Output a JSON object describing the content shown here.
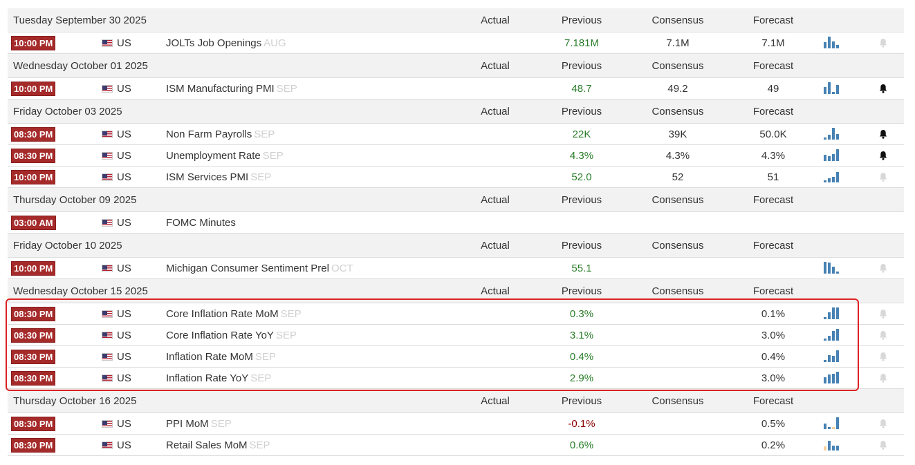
{
  "columns": {
    "actual": "Actual",
    "previous": "Previous",
    "consensus": "Consensus",
    "forecast": "Forecast"
  },
  "colors": {
    "time_badge": "#a52a2a",
    "positive": "#2a7d2a",
    "negative": "#8b0000",
    "bar": "#4682b4",
    "highlight": "#dd2222"
  },
  "groups": [
    {
      "date": "Tuesday September 30 2025",
      "events": [
        {
          "time": "10:00 PM",
          "country": "US",
          "flag_icon": "us-flag-icon",
          "name": "JOLTs Job Openings",
          "ref": "AUG",
          "actual": "",
          "previous": "7.181M",
          "previous_color": "green",
          "consensus": "7.1M",
          "forecast": "7.1M",
          "bars": [
            0.55,
            1,
            0.6,
            0.3
          ],
          "alert": false
        }
      ]
    },
    {
      "date": "Wednesday October 01 2025",
      "events": [
        {
          "time": "10:00 PM",
          "country": "US",
          "flag_icon": "us-flag-icon",
          "name": "ISM Manufacturing PMI",
          "ref": "SEP",
          "actual": "",
          "previous": "48.7",
          "previous_color": "green",
          "consensus": "49.2",
          "forecast": "49",
          "bars": [
            0.6,
            1,
            0.2,
            0.75
          ],
          "alert": true
        }
      ]
    },
    {
      "date": "Friday October 03 2025",
      "events": [
        {
          "time": "08:30 PM",
          "country": "US",
          "flag_icon": "us-flag-icon",
          "name": "Non Farm Payrolls",
          "ref": "SEP",
          "actual": "",
          "previous": "22K",
          "previous_color": "green",
          "consensus": "39K",
          "forecast": "50.0K",
          "bars": [
            0.2,
            0.4,
            1,
            0.45
          ],
          "alert": true
        },
        {
          "time": "08:30 PM",
          "country": "US",
          "flag_icon": "us-flag-icon",
          "name": "Unemployment Rate",
          "ref": "SEP",
          "actual": "",
          "previous": "4.3%",
          "previous_color": "green",
          "consensus": "4.3%",
          "forecast": "4.3%",
          "bars": [
            0.55,
            0.4,
            0.6,
            1
          ],
          "alert": true
        },
        {
          "time": "10:00 PM",
          "country": "US",
          "flag_icon": "us-flag-icon",
          "name": "ISM Services PMI",
          "ref": "SEP",
          "actual": "",
          "previous": "52.0",
          "previous_color": "green",
          "consensus": "52",
          "forecast": "51",
          "bars": [
            0.2,
            0.35,
            0.45,
            0.9
          ],
          "alert": false
        }
      ]
    },
    {
      "date": "Thursday October 09 2025",
      "events": [
        {
          "time": "03:00 AM",
          "country": "US",
          "flag_icon": "us-flag-icon",
          "name": "FOMC Minutes",
          "ref": "",
          "actual": "",
          "previous": "",
          "previous_color": "green",
          "consensus": "",
          "forecast": "",
          "bars": [],
          "alert": null
        }
      ]
    },
    {
      "date": "Friday October 10 2025",
      "events": [
        {
          "time": "10:00 PM",
          "country": "US",
          "flag_icon": "us-flag-icon",
          "name": "Michigan Consumer Sentiment Prel",
          "ref": "OCT",
          "actual": "",
          "previous": "55.1",
          "previous_color": "green",
          "consensus": "",
          "forecast": "",
          "bars": [
            1,
            0.95,
            0.6,
            0.15
          ],
          "alert": false
        }
      ]
    },
    {
      "date": "Wednesday October 15 2025",
      "events": [
        {
          "time": "08:30 PM",
          "country": "US",
          "flag_icon": "us-flag-icon",
          "name": "Core Inflation Rate MoM",
          "ref": "SEP",
          "actual": "",
          "previous": "0.3%",
          "previous_color": "green",
          "consensus": "",
          "forecast": "0.1%",
          "bars": [
            0.2,
            0.6,
            1,
            1
          ],
          "alert": false
        },
        {
          "time": "08:30 PM",
          "country": "US",
          "flag_icon": "us-flag-icon",
          "name": "Core Inflation Rate YoY",
          "ref": "SEP",
          "actual": "",
          "previous": "3.1%",
          "previous_color": "green",
          "consensus": "",
          "forecast": "3.0%",
          "bars": [
            0.15,
            0.4,
            0.85,
            1
          ],
          "alert": false
        },
        {
          "time": "08:30 PM",
          "country": "US",
          "flag_icon": "us-flag-icon",
          "name": "Inflation Rate MoM",
          "ref": "SEP",
          "actual": "",
          "previous": "0.4%",
          "previous_color": "green",
          "consensus": "",
          "forecast": "0.4%",
          "bars": [
            0.15,
            0.6,
            0.55,
            1
          ],
          "alert": false
        },
        {
          "time": "08:30 PM",
          "country": "US",
          "flag_icon": "us-flag-icon",
          "name": "Inflation Rate YoY",
          "ref": "SEP",
          "actual": "",
          "previous": "2.9%",
          "previous_color": "green",
          "consensus": "",
          "forecast": "3.0%",
          "bars": [
            0.55,
            0.75,
            0.8,
            1
          ],
          "alert": false
        }
      ]
    },
    {
      "date": "Thursday October 16 2025",
      "events": [
        {
          "time": "08:30 PM",
          "country": "US",
          "flag_icon": "us-flag-icon",
          "name": "PPI MoM",
          "ref": "SEP",
          "actual": "",
          "previous": "-0.1%",
          "previous_color": "red",
          "consensus": "",
          "forecast": "0.5%",
          "bars": [
            0.45,
            0.2,
            0.2,
            1
          ],
          "up_bar": 2,
          "alert": false
        },
        {
          "time": "08:30 PM",
          "country": "US",
          "flag_icon": "us-flag-icon",
          "name": "Retail Sales MoM",
          "ref": "SEP",
          "actual": "",
          "previous": "0.6%",
          "previous_color": "green",
          "consensus": "",
          "forecast": "0.2%",
          "bars": [
            0.35,
            0.8,
            0.4,
            0.4
          ],
          "up_bar": 0,
          "alert": false
        }
      ]
    }
  ]
}
